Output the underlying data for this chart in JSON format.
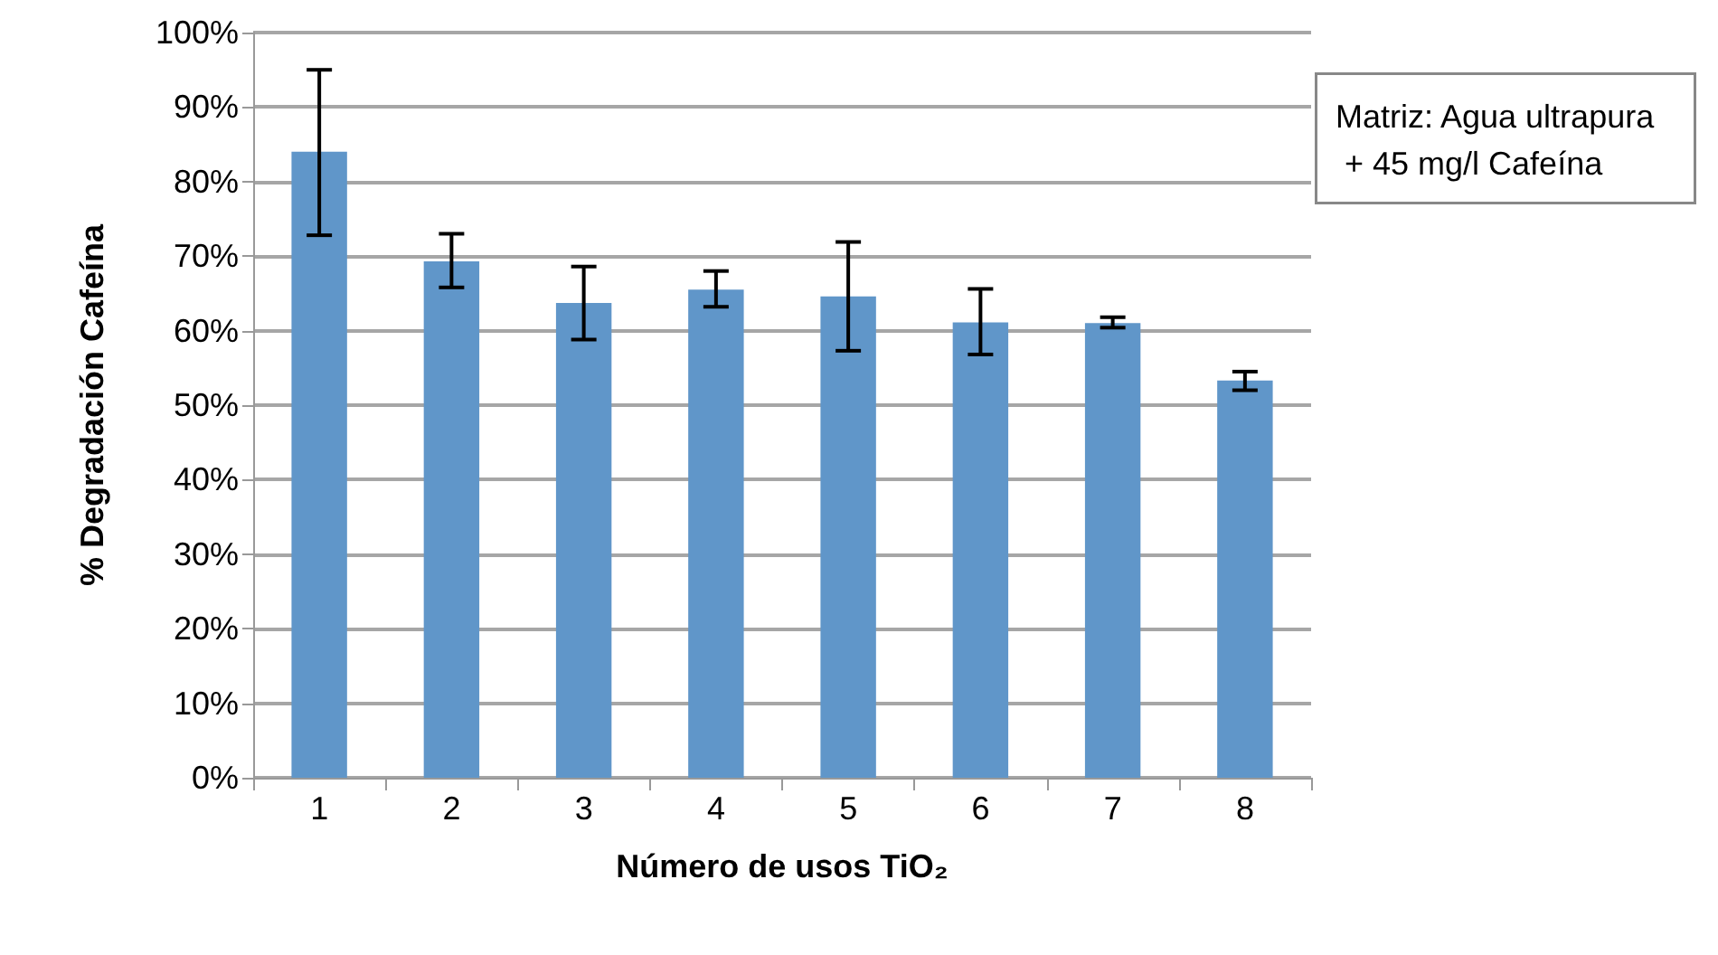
{
  "chart_data": {
    "type": "bar",
    "xlabel": "Número de usos TiO₂",
    "ylabel": "% Degradación Cafeína",
    "categories": [
      "1",
      "2",
      "3",
      "4",
      "5",
      "6",
      "7",
      "8"
    ],
    "values": [
      84,
      69.3,
      63.7,
      65.5,
      64.6,
      61.1,
      61,
      53.3
    ],
    "errors": [
      [
        72.8,
        95
      ],
      [
        65.8,
        73
      ],
      [
        58.8,
        68.6
      ],
      [
        63.2,
        68
      ],
      [
        57.3,
        71.9
      ],
      [
        56.8,
        65.6
      ],
      [
        60.4,
        61.8
      ],
      [
        52,
        54.5
      ]
    ],
    "color": "#6096c9",
    "ylim": [
      0,
      100
    ],
    "yticks": [
      {
        "value": 0,
        "label": "0%"
      },
      {
        "value": 10,
        "label": "10%"
      },
      {
        "value": 20,
        "label": "20%"
      },
      {
        "value": 30,
        "label": "30%"
      },
      {
        "value": 40,
        "label": "40%"
      },
      {
        "value": 50,
        "label": "50%"
      },
      {
        "value": 60,
        "label": "60%"
      },
      {
        "value": 70,
        "label": "70%"
      },
      {
        "value": 80,
        "label": "80%"
      },
      {
        "value": 90,
        "label": "90%"
      },
      {
        "value": 100,
        "label": "100%"
      }
    ],
    "grid": "y",
    "annotations": [
      "Matriz: Agua ultrapura + 45 mg/l Cafeína"
    ]
  }
}
